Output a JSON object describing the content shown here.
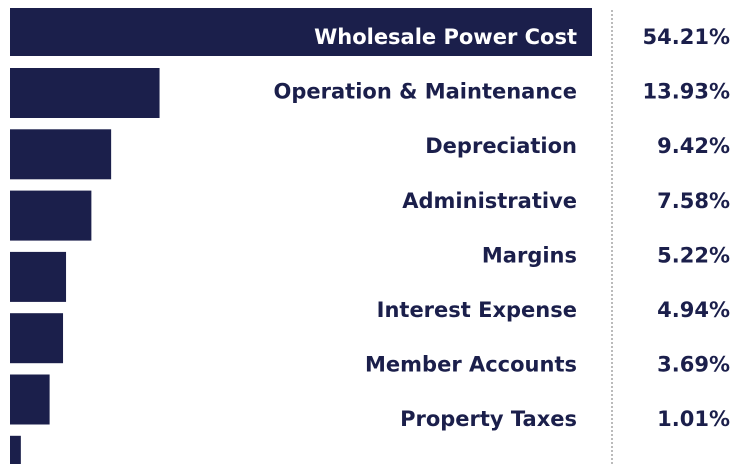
{
  "chart_data": {
    "type": "bar",
    "orientation": "horizontal",
    "categories": [
      "Wholesale Power Cost",
      "Operation & Maintenance",
      "Depreciation",
      "Administrative",
      "Margins",
      "Interest Expense",
      "Member Accounts",
      "Property Taxes"
    ],
    "values": [
      54.21,
      13.93,
      9.42,
      7.58,
      5.22,
      4.94,
      3.69,
      1.01
    ],
    "value_labels": [
      "54.21%",
      "13.93%",
      "9.42%",
      "7.58%",
      "5.22%",
      "4.94%",
      "3.69%",
      "1.01%"
    ],
    "color": "#1b1f4b"
  }
}
